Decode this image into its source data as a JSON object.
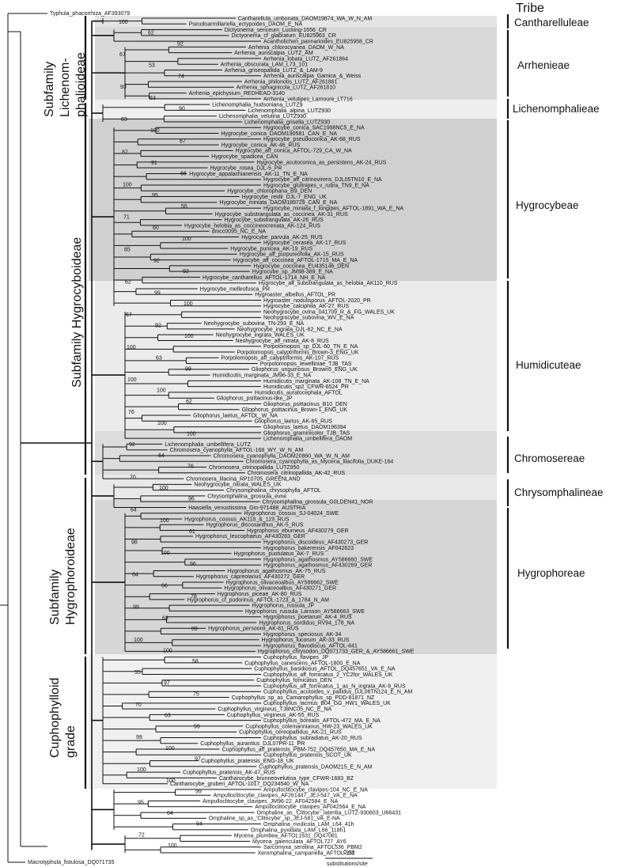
{
  "header": {
    "tribe": "Tribe"
  },
  "subfamilies": [
    {
      "lines": [
        "Subfamily",
        "Lichenom-",
        "phalioideae"
      ]
    },
    {
      "lines": [
        "Subfamily Hygrocyboideae"
      ]
    },
    {
      "lines": [
        "Subfamily",
        "Hygrophoroideae"
      ]
    },
    {
      "lines": [
        "Cuphophylloid",
        "grade"
      ]
    }
  ],
  "tribes": [
    "Cantharelluleae",
    "Arrhenieae",
    "Lichenomphalieae",
    "Hygrocybeae",
    "Humidicuteae",
    "Chromosereae",
    "Chrysomphalineae",
    "Hygrophoreae"
  ],
  "outgroups": {
    "top": "Typhula_phacorrhiza_AF393079",
    "bottom": "Macrotyphula_fistulosa_DQ071735"
  },
  "scale": {
    "value": "0.03",
    "unit": "substitutions/site"
  },
  "tips": [
    "Cantharellula_umbonata_DAOM19874_WA_W_N_AM",
    "Pseudoarmillariella_ectypoides_DAOM_E_NA",
    "Dictyonema_sericeum_Lucking-1656_CR",
    "Dictyonema_cf_glabratum_EU825963_CR",
    "Acantholichen_pannarioides_EU825958_CR",
    "Arrhenia_chlorocyanea_DAOM_W_NA",
    "Arrhenia_auriscalpia_LUTZ_AM",
    "Arrhenia_lobata_LUTZ_AF261864",
    "Arrhenia_obscurata_LAM_L73_101",
    "Arrhenia_griseopallida_LUTZ_&_LAM-9",
    "Arrhenia_auriscalpia_Gamica_&_Weiss",
    "Arrhenia_philonotis_LUTZ_AF261861",
    "Arrhenia_sphagnicola_LUTZ_AF261810",
    "Arrhenia_epichysium_REDHEAD-3140",
    "Arrhenia_velutipes_Lamoure_LT716",
    "Lichenomphalia_hudsoniana_LUTZ9",
    "Lichenomphalia_alpina_LUTZ930",
    "Lichenomphalia_velutina_LUTZ930",
    "Lichenomphalia_grisella_LUTZ930",
    "Hygrocybe_conica_SAC1998NC5_E_NA",
    "Hygrocybe_conica_DAOM190581_CAN_E_NA",
    "Hygrocybe_pseudoconica_AK-68_RUS",
    "Hygrocybe_conica_AK-46_RUS",
    "Hygrocybe_aff_conica_AFTOL-729_CA_W_NA",
    "Hygrocybe_spadicea_CAN",
    "Hygrocybe_acutoconica_as_persistens_AK-24_RUS",
    "Hygrocybe_rosea_DJL-5_PR",
    "Hygrocybe_appalachianensis_AK-11_TN_E_NA",
    "Hygrocybe_aff_citrinovirens_DJL05TN10_E_NA",
    "Hygrocybe_glutinipes_v_rubra_TN9_E_NA",
    "Hygrocybe_chlorophana_B9_DEN",
    "Hygrocybe_reidii_DJL-7_ENG_UK",
    "Hygrocybe_miniata_DAOM189729_CAN_E_NA",
    "Hygrocybe_miniata_f_longipes_AFTOL-1891_WA_E_NA",
    "Hygrocybe_substrangulata_as_coccinea_AK-31_RUS",
    "Hygrocybe_substrangulata_AK-26_RUS",
    "Hygrocybe_helobia_as_coccineocrenata_AK-124_RUS",
    "dmcc0095_NC_E_NA",
    "Hygrocybe_parvula_AK-25_RUS",
    "Hygrocybe_cerasea_AK-17_RUS",
    "Hygrocybe_punicea_AK-19_RUS",
    "Hygrocybe_aff_purpureofolia_AK-15_RUS",
    "Hygrocybe_aff_coccinea_AFTOL-1715_MA_E_NA",
    "Hygrocybe_coccinea_EU435146_DEN",
    "Hygrocybe_sp_JM98-389_E_NA",
    "Hygrocybe_cantharellus_AFTOL-1714_NH_E_NA",
    "Hygrocybe_aff_substrangulata_as_helobia_AK110_RUS",
    "Hygrocybe_melleofusca_PR",
    "Hygroaster_albellus_AFTOL_PR",
    "Hygroaster_nodulisporus_AFTOL-2020_PR",
    "Hygrocybe_calciphila_AK-27_RUS",
    "Neohygrocybe_ovina_041709_R_&_FG_WALES_UK",
    "Neohygrocybe_subovina_WV_E_NA",
    "Neohygrocybe_subovina_TN-293_E_NA",
    "Neohygrocybe_ingrata_DJL-62_NC_E_NA",
    "Neohygrocybe_ingrata_WALES_UK",
    "Neohygrocybe_aff_nitrata_AK-8_RUS",
    "Porpolomopsis_sp_DJL-60_TN_E_NA",
    "Porpolomopsis_calyptriformis_Brown-3_ENG_UK",
    "Porpolomopsis_aff_calyptriformis_AK-107_RUS",
    "Porpolomopsis_lewelliniae_TJB_TAS",
    "Gliophorus_unguinosus_Brown5_ENG_UK",
    "Humidicutis_marginata_JM96-33_E_NA",
    "Humidicutis_marginata_AK-108_TN_E_NA",
    "Humidicutis_sp2_CFWR-6524_PR",
    "Humidicutis_auratocephala_AFTOL",
    "Gliophorus_psittacinus-like_JP",
    "Gliophorus_psittacinus_B10_DEN",
    "Gliophorus_psittacinus_Brown-1_ENG_UK",
    "Gliophorus_laetus_AFTOL_W_NA",
    "Gliophorus_laetus_AK-65_RUS",
    "Gliophorus_laetus_DAOM196394",
    "Gliophorus_graminicolor_TJB_TAS",
    "Lichenomphalia_umbellifera_DAOM",
    "Lichenomphalia_umbellifera_LUTZ",
    "Chromosera_cyanophylla_AFTOL-168_WY_W_N_AM",
    "Chromosera_cyanophylla_DAOM20860_WA_W_N_AM",
    "Chromosera_cyanophylla_as_Mycena_lilacifolia_DUKE-164",
    "Chromosera_citrinopallida_LUTZ950",
    "Chromosera_citrinopallida_AK-42_RUS",
    "Chromosera_lilacina_RP10705_GREENLAND",
    "Neohygrocybe_nitrata_WALES_UK",
    "Chrysomphalina_chrysophylla_AFTOL",
    "Chrysomphalina_grossula_evne",
    "Chrysomphalina_grossula_G0LDEN41_NOR",
    "Haasiella_venustissima_Gm-971488_AUSTRIA",
    "Hygrophorus_cossus_SJ-04024_SWE",
    "Hygrophorus_cossus_AK118_&_119_RUS",
    "Hygrophorus_discoxanthus_AK-5_RUS",
    "Hygrophorus_eburneus_AF430279_GER",
    "Hygrophorus_leucophaeus_AF430283_GER",
    "Hygrophorus_discoideus_AF430273_GER",
    "Hygrophorus_bakerensis_AF042623",
    "Hygrophorus_pustulatus_AK-7_RUS",
    "Hygrophorus_agathosmus_AY586660_SWE",
    "Hygrophorus_agathosmus_AF430269_GER",
    "Hygrophorus_agathosmus_AK-75_RUS",
    "Hygrophorus_capreolarius_AF430272_GER",
    "Hygrophorus_olivaceoalbus_AY586662_SWE",
    "Hygrophorus_olivaceoalbus_AF430271_GER",
    "Hygrophorus_piceae_AK-80_RUS",
    "Hygrophorus_cf_pudorinus_AFTOL-1723_&_1784_N_AM",
    "Hygrophorus_russula_JP",
    "Hygrophorus_russula_Larsson_AY586663_SWE",
    "Hygrophorus_poetarum_AK-4_RUS",
    "Hygrophorus_sordidus_RV94_178_NA",
    "Hygrophorus_persoonii_AK-81_RUS",
    "Hygrophorus_speciosus_AK-34",
    "Hygrophorus_lucorum_AK-33_RUS",
    "Hygrophorus_flavodiscus_AFTOL-641",
    "Hygrophorus_chrysodon_DQ071733_GER_&_AY586661_SWE",
    "Cuphophyllus_flavipes_JP",
    "Cuphophyllus_canescens_AFTOL-1800_E_NA",
    "Cuphophyllus_basidiosus_AFTOL_DQ457651_VA_E_NA",
    "Cuphophyllus_aff_fornicatus_2_YC2for_WALES_UK",
    "Cuphophyllus_fornicatus_DEN",
    "Cuphophyllus_aff_fornicatus_1_as_N_ingrata_AK-9_RUS",
    "Cuphophyllus_acutoides_v_pallidus_DJL06TN124_E_N_AM",
    "Cuphophyllus_sp_as_Camarophyllus_sp_PDD-81871_NZ",
    "Cuphophyllus_lacmus_B04_GG_HW1_WALES_UK",
    "Cuphophyllus_virgineus_TJ8NC05_NC_E_NA",
    "Cuphophyllus_virgineus_AK-55_RUS",
    "Cuphophyllus_borealis_AFTOL-472_MA_E_NA",
    "Cuphophyllus_colemannianus_HW-23_WALES_UK",
    "Cuphophyllus_cereopallidus_AK-21_RUS",
    "Cuphophyllus_subradiatus_AK-20_RUS",
    "Cuphophyllus_aurantius_DJL07PR-11_PR",
    "Cuphophyllus_aff_pratensis_PBM-752_DQ457650_MA_E_NA",
    "Cuphophyllus_pratensis_SCOT_UK",
    "Cuphophyllus_pratensis_ENG-18_UK",
    "Cuphophyllus_pratensis_DAOM215_E_N_AM",
    "Cuphophyllus_pratensis_AK-47_RUS",
    "Cantharocybe_brunneovelutina_type_CFWR-1683_BZ",
    "Cantharocybe_gruberi_AFTOL-1017_DQ234540_W_NA",
    "Ampulloclitocybe_clavipes-104_NC_E_NA",
    "Ampulloclitocybe_clavipes_AF261447_JEJ-547_VA_E_NA",
    "Ampulloclitocybe_clavipes_JM96-22_AF042584_E_NA",
    "Ampulloclitocybe_clavipes_AF042564_E_NA",
    "Omphaline_as_'Clitocybe'_lateritia_LUTZ-930603_U66431",
    "Omphaline_sp_as_'Clitocybe'_sp_JEJ-581_VA_E-NA",
    "Omphalina_rivulicola_LAM_L64_41h",
    "Omphalina_pyxidata_LAM_L66_118h1",
    "Mycena_plumbea_AFTOL1631_DQ47081",
    "Mycena_galericulata_AFTOL727_AY6",
    "Sarcomyxa_serotina_AFTOL536_PBM2",
    "Xeromphalina_campanella_AFTOL-152"
  ],
  "supports": [
    "100",
    "62",
    "92",
    "67",
    "53",
    "74",
    "93",
    "63",
    "90",
    "63",
    "100",
    "67",
    "87",
    "91",
    "66",
    "100",
    "95",
    "55",
    "71",
    "60",
    "100",
    "85",
    "92",
    "92",
    "62",
    "99",
    "100",
    "67",
    "92",
    "100",
    "100",
    "63",
    "99",
    "100",
    "100",
    "62",
    "76",
    "100",
    "100",
    "92",
    "64",
    "76",
    "70",
    "100",
    "96",
    "64",
    "100",
    "61",
    "98",
    "100",
    "96",
    "64",
    "66",
    "78",
    "99",
    "63",
    "89",
    "100",
    "100",
    "58",
    "55",
    "97",
    "75",
    "70",
    "63",
    "99",
    "99",
    "100",
    "97",
    "100",
    "100",
    "99",
    "95",
    "64",
    "94",
    "72",
    "100"
  ]
}
